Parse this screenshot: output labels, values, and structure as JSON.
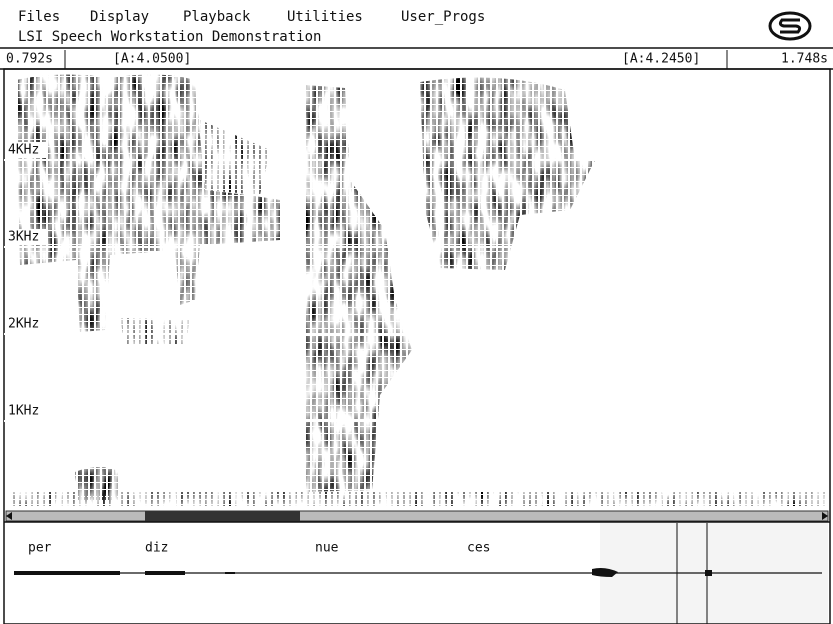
{
  "menu": [
    "Files",
    "Display",
    "Playback",
    "Utilities",
    "User_Progs"
  ],
  "window_title": "LSI Speech Workstation Demonstration",
  "status": {
    "start_time": "0.792s",
    "cursor_left": "[A:4.0500]",
    "cursor_right": "[A:4.2450]",
    "end_time": "1.748s"
  },
  "frequency_labels": [
    "4KHz",
    "3KHz",
    "2KHz",
    "1KHz"
  ],
  "segments": [
    "per",
    "diz",
    "nue",
    "ces"
  ]
}
